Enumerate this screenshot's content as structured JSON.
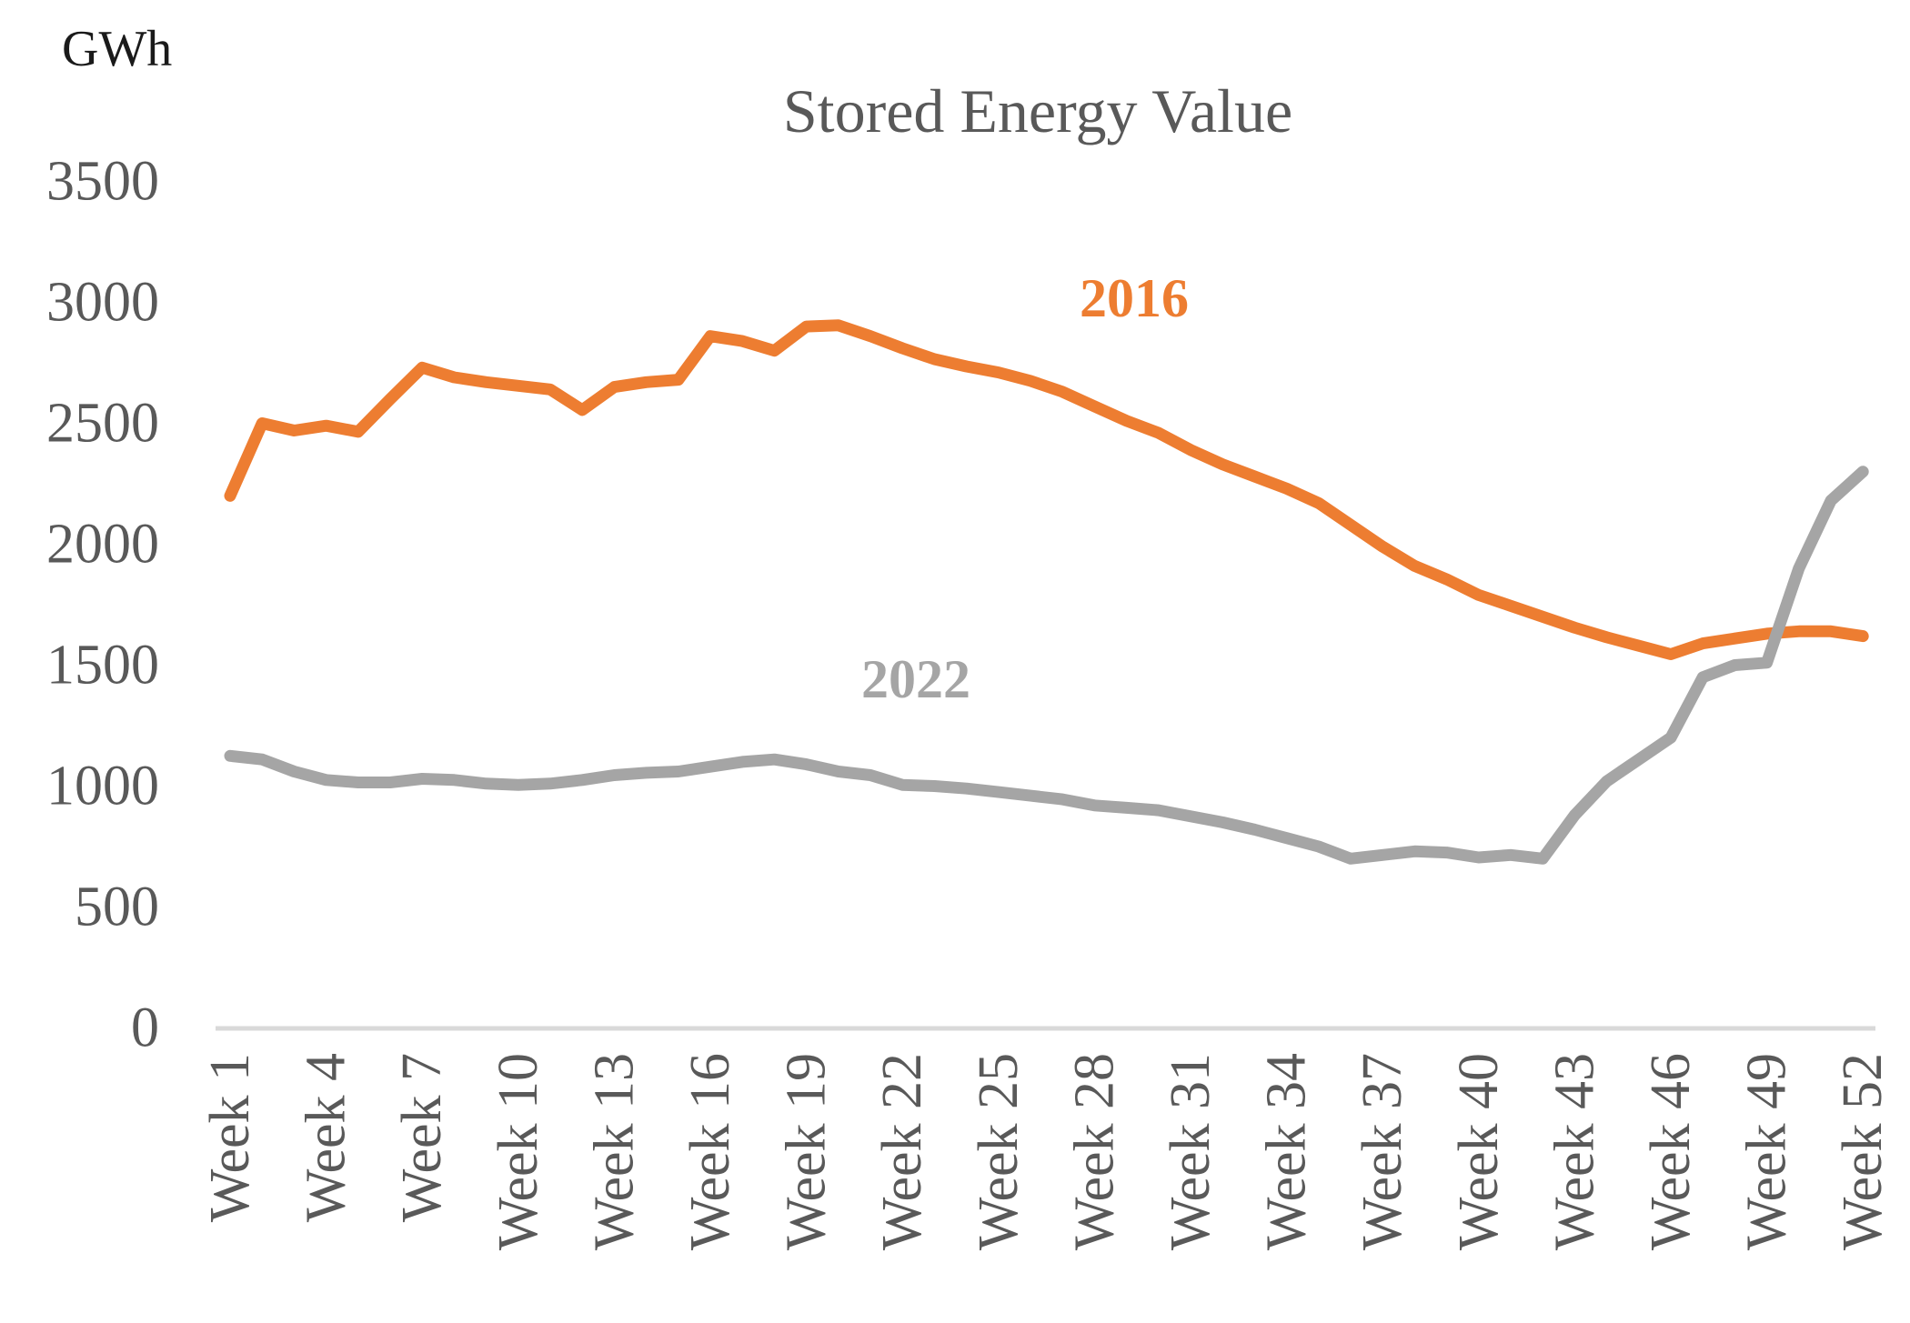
{
  "title": "Stored Energy Value",
  "y_unit_label": "GWh",
  "colors": {
    "orange_series": "#ED7D31",
    "gray_series": "#A5A5A5",
    "axis_line": "#D9D9D9",
    "tick_text": "#595959",
    "title_text": "#595959"
  },
  "chart_data": {
    "type": "line",
    "title": "Stored Energy Value",
    "ylabel": "GWh",
    "xlabel": "",
    "ylim": [
      0,
      3500
    ],
    "y_ticks": [
      0,
      500,
      1000,
      1500,
      2000,
      2500,
      3000,
      3500
    ],
    "x_tick_weeks": [
      1,
      4,
      7,
      10,
      13,
      16,
      19,
      22,
      25,
      28,
      31,
      34,
      37,
      40,
      43,
      46,
      49,
      52
    ],
    "x_tick_labels": [
      "Week 1",
      "Week 4",
      "Week 7",
      "Week 10",
      "Week 13",
      "Week 16",
      "Week 19",
      "Week 22",
      "Week 25",
      "Week 28",
      "Week 31",
      "Week 34",
      "Week 37",
      "Week 40",
      "Week 43",
      "Week 46",
      "Week 49",
      "Week 52"
    ],
    "grid": false,
    "legend": "inline-labels",
    "x": [
      1,
      2,
      3,
      4,
      5,
      6,
      7,
      8,
      9,
      10,
      11,
      12,
      13,
      14,
      15,
      16,
      17,
      18,
      19,
      20,
      21,
      22,
      23,
      24,
      25,
      26,
      27,
      28,
      29,
      30,
      31,
      32,
      33,
      34,
      35,
      36,
      37,
      38,
      39,
      40,
      41,
      42,
      43,
      44,
      45,
      46,
      47,
      48,
      49,
      50,
      51,
      52
    ],
    "series": [
      {
        "name": "2016",
        "color": "#ED7D31",
        "values": [
          2200,
          2500,
          2470,
          2490,
          2465,
          2600,
          2730,
          2690,
          2670,
          2655,
          2640,
          2555,
          2650,
          2670,
          2680,
          2860,
          2840,
          2800,
          2900,
          2905,
          2860,
          2810,
          2765,
          2735,
          2710,
          2675,
          2630,
          2570,
          2510,
          2460,
          2390,
          2330,
          2280,
          2230,
          2170,
          2080,
          1990,
          1910,
          1855,
          1790,
          1745,
          1700,
          1655,
          1615,
          1580,
          1545,
          1590,
          1610,
          1630,
          1640,
          1640,
          1620
        ]
      },
      {
        "name": "2022",
        "color": "#A5A5A5",
        "values": [
          1125,
          1110,
          1060,
          1025,
          1015,
          1015,
          1030,
          1025,
          1010,
          1005,
          1010,
          1025,
          1045,
          1055,
          1060,
          1080,
          1100,
          1110,
          1090,
          1060,
          1045,
          1005,
          1000,
          990,
          975,
          960,
          945,
          920,
          910,
          900,
          875,
          850,
          820,
          785,
          750,
          700,
          715,
          730,
          725,
          705,
          715,
          700,
          880,
          1020,
          1110,
          1200,
          1450,
          1500,
          1510,
          1900,
          2180,
          2300
        ]
      }
    ]
  }
}
